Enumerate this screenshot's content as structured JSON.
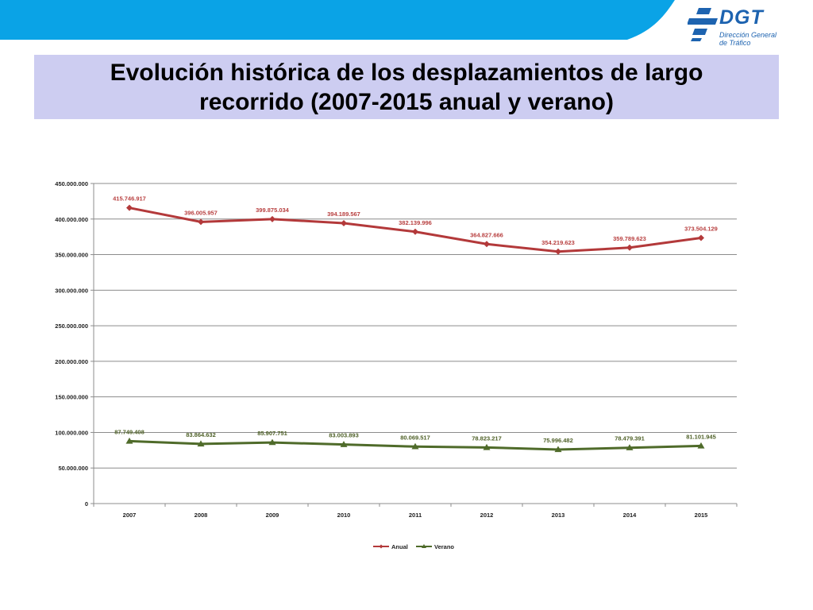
{
  "header": {
    "logo_text": "DGT",
    "logo_subtitle_line1": "Dirección General",
    "logo_subtitle_line2": "de Tráfico"
  },
  "slide": {
    "title_line1": "Evolución histórica de los desplazamientos de largo",
    "title_line2": "recorrido (2007-2015 anual y verano)"
  },
  "colors": {
    "band": "#0aa3e6",
    "logo": "#1d63b0",
    "title_bg": "#cdcdf1",
    "anual": "#b3393a",
    "anual_label": "#b84040",
    "verano": "#4f6b2a",
    "verano_label": "#4f6128"
  },
  "chart_data": {
    "type": "line",
    "title": "",
    "xlabel": "",
    "ylabel": "",
    "categories": [
      "2007",
      "2008",
      "2009",
      "2010",
      "2011",
      "2012",
      "2013",
      "2014",
      "2015"
    ],
    "ylim": [
      0,
      450000000
    ],
    "yticks": [
      0,
      50000000,
      100000000,
      150000000,
      200000000,
      250000000,
      300000000,
      350000000,
      400000000,
      450000000
    ],
    "ytick_labels": [
      "0",
      "50.000.000",
      "100.000.000",
      "150.000.000",
      "200.000.000",
      "250.000.000",
      "300.000.000",
      "350.000.000",
      "400.000.000",
      "450.000.000"
    ],
    "grid": true,
    "legend_position": "bottom",
    "series": [
      {
        "name": "Anual",
        "marker": "diamond",
        "values": [
          415746917,
          396005957,
          399875034,
          394189567,
          382139996,
          364827666,
          354219623,
          359789623,
          373504129
        ],
        "labels": [
          "415.746.917",
          "396.005.957",
          "399.875.034",
          "394.189.567",
          "382.139.996",
          "364.827.666",
          "354.219.623",
          "359.789.623",
          "373.504.129"
        ]
      },
      {
        "name": "Verano",
        "marker": "triangle",
        "values": [
          87749408,
          83864632,
          85907751,
          83003893,
          80069517,
          78823217,
          75996482,
          78479391,
          81101945
        ],
        "labels": [
          "87.749.408",
          "83.864.632",
          "85.907.751",
          "83.003.893",
          "80.069.517",
          "78.823.217",
          "75.996.482",
          "78.479.391",
          "81.101.945"
        ]
      }
    ]
  }
}
